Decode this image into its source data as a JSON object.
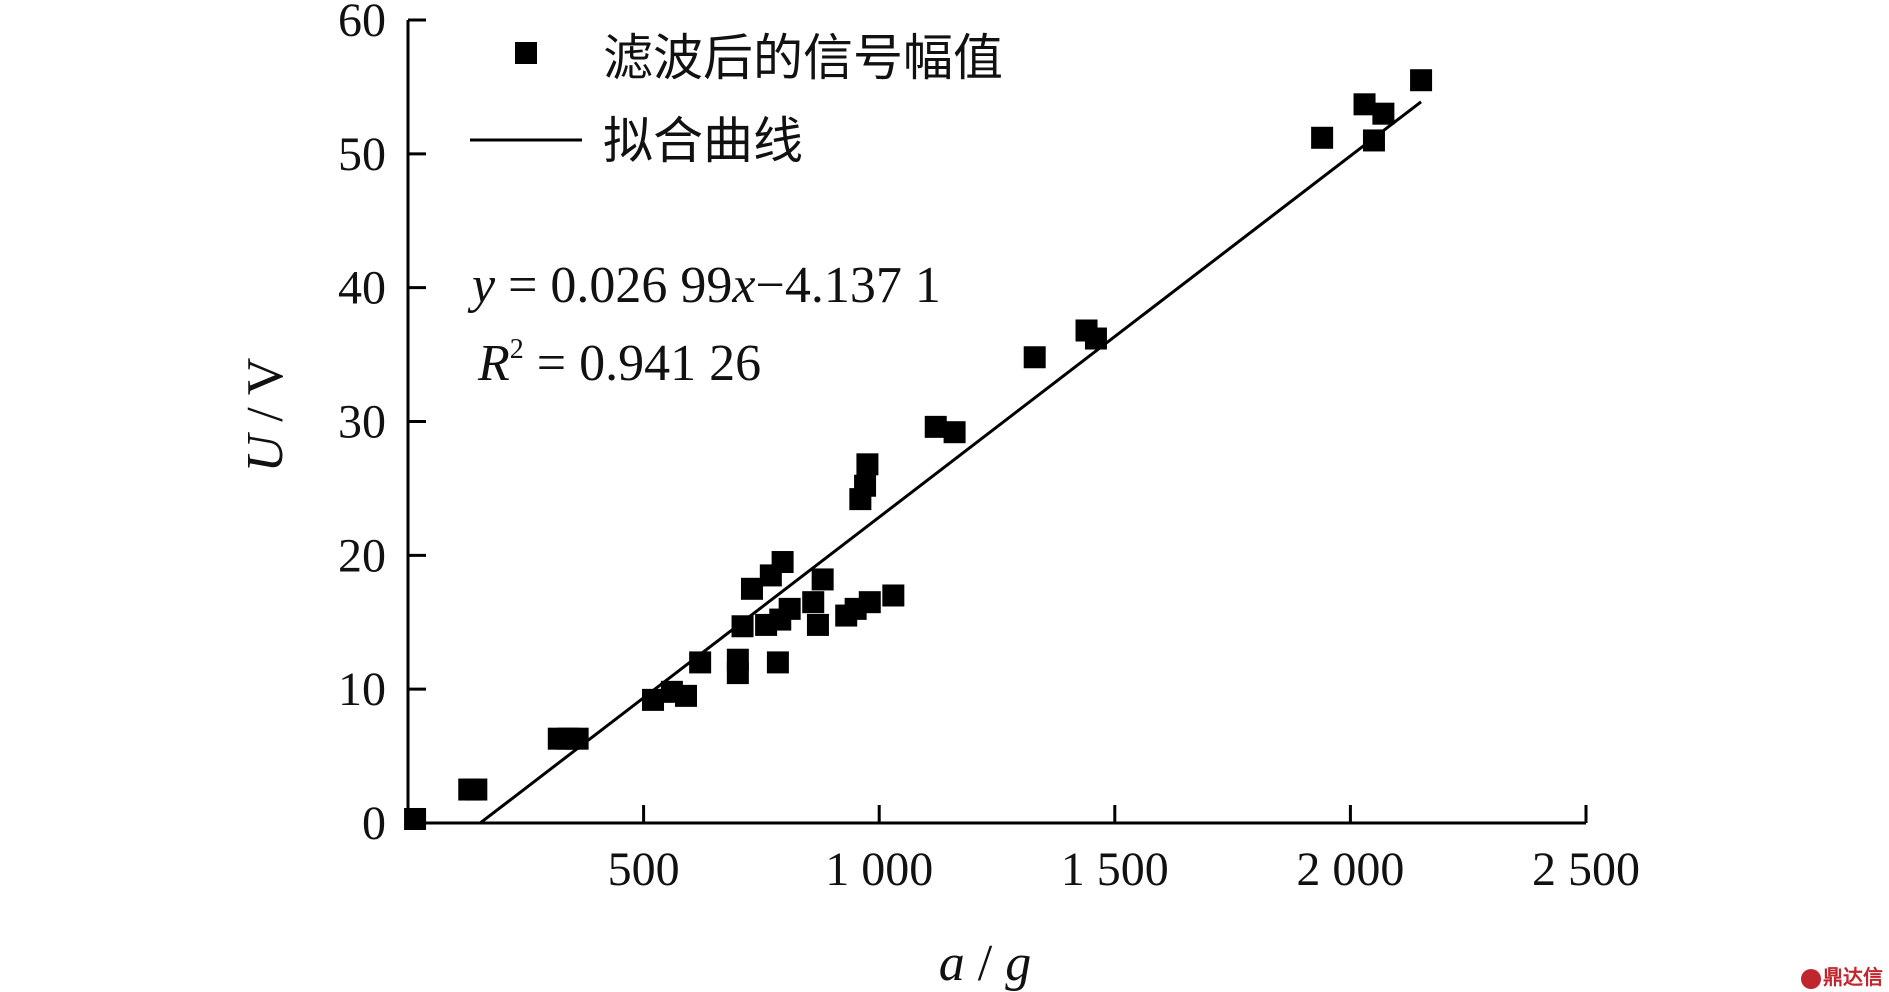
{
  "chart_data": {
    "type": "scatter",
    "xlabel_var": "a",
    "xlabel_unit": "g",
    "ylabel_var": "U",
    "ylabel_unit": "V",
    "xlim": [
      0,
      2500
    ],
    "ylim": [
      0,
      60
    ],
    "xticks": [
      500,
      1000,
      1500,
      2000,
      2500
    ],
    "xtick_labels": [
      "500",
      "1 000",
      "1 500",
      "2 000",
      "2 500"
    ],
    "yticks": [
      0,
      10,
      20,
      30,
      40,
      50,
      60
    ],
    "ytick_labels": [
      "0",
      "10",
      "20",
      "30",
      "40",
      "50",
      "60"
    ],
    "legend": {
      "placement": "top-left",
      "entries": [
        {
          "label": "滤波后的信号幅值",
          "marker": "square"
        },
        {
          "label": "拟合曲线",
          "marker": "line"
        }
      ]
    },
    "series": [
      {
        "name": "滤波后的信号幅值",
        "marker": "square",
        "color": "#000000",
        "points": [
          [
            15,
            0.3
          ],
          [
            130,
            2.5
          ],
          [
            145,
            2.5
          ],
          [
            320,
            6.3
          ],
          [
            340,
            6.3
          ],
          [
            360,
            6.3
          ],
          [
            520,
            9.2
          ],
          [
            560,
            9.8
          ],
          [
            590,
            9.5
          ],
          [
            620,
            12.0
          ],
          [
            700,
            11.2
          ],
          [
            700,
            12.2
          ],
          [
            710,
            14.7
          ],
          [
            730,
            17.5
          ],
          [
            760,
            14.8
          ],
          [
            770,
            18.5
          ],
          [
            785,
            12.0
          ],
          [
            790,
            15.2
          ],
          [
            795,
            19.5
          ],
          [
            810,
            16.0
          ],
          [
            860,
            16.5
          ],
          [
            870,
            14.8
          ],
          [
            880,
            18.2
          ],
          [
            930,
            15.5
          ],
          [
            950,
            16.0
          ],
          [
            960,
            24.2
          ],
          [
            970,
            25.2
          ],
          [
            975,
            26.8
          ],
          [
            980,
            16.5
          ],
          [
            1030,
            17.0
          ],
          [
            1120,
            29.6
          ],
          [
            1160,
            29.2
          ],
          [
            1330,
            34.8
          ],
          [
            1440,
            36.8
          ],
          [
            1460,
            36.2
          ],
          [
            1940,
            51.2
          ],
          [
            2030,
            53.7
          ],
          [
            2050,
            51.0
          ],
          [
            2070,
            53.0
          ],
          [
            2150,
            55.5
          ]
        ]
      },
      {
        "name": "拟合曲线",
        "type": "line",
        "color": "#000000",
        "slope": 0.02699,
        "intercept": -4.1371,
        "x_range": [
          153,
          2150
        ]
      }
    ],
    "annotations": {
      "equation_var_y": "y",
      "equation_mid": " = 0.026 99",
      "equation_var_x": "x",
      "equation_tail": "−4.137 1",
      "r2_var": "R",
      "r2_sup": "2",
      "r2_value": " = 0.941 26"
    }
  },
  "watermark": {
    "text": "鼎达信"
  }
}
